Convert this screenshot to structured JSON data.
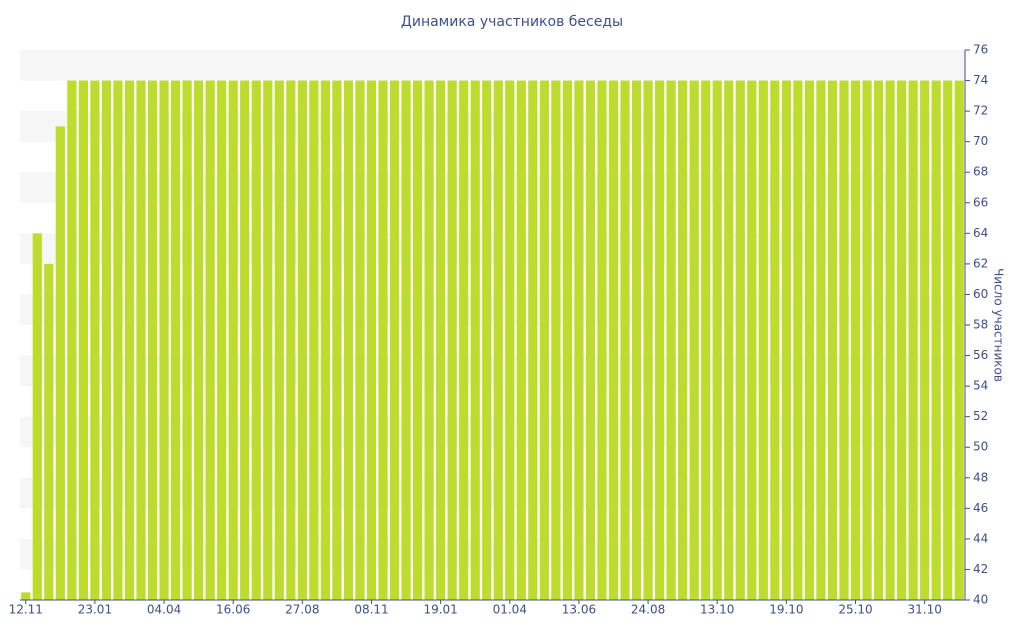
{
  "chart_data": {
    "type": "bar",
    "title": "Динамика участников беседы",
    "y_axis_label": "Число участников",
    "y_axis_side": "right",
    "grid": "bands",
    "color": "#bedc2e",
    "categories": [
      "12.11",
      null,
      null,
      null,
      null,
      null,
      "23.01",
      null,
      null,
      null,
      null,
      null,
      "04.04",
      null,
      null,
      null,
      null,
      null,
      "16.06",
      null,
      null,
      null,
      null,
      null,
      "27.08",
      null,
      null,
      null,
      null,
      null,
      "08.11",
      null,
      null,
      null,
      null,
      null,
      "19.01",
      null,
      null,
      null,
      null,
      null,
      "01.04",
      null,
      null,
      null,
      null,
      null,
      "13.06",
      null,
      null,
      null,
      null,
      null,
      "24.08",
      null,
      null,
      null,
      null,
      null,
      "13.10",
      null,
      null,
      null,
      null,
      null,
      "19.10",
      null,
      null,
      null,
      null,
      null,
      "25.10",
      null,
      null,
      null,
      null,
      null,
      "31.10",
      null,
      null,
      null
    ],
    "values": [
      40.5,
      64,
      62,
      71,
      74,
      74,
      74,
      74,
      74,
      74,
      74,
      74,
      74,
      74,
      74,
      74,
      74,
      74,
      74,
      74,
      74,
      74,
      74,
      74,
      74,
      74,
      74,
      74,
      74,
      74,
      74,
      74,
      74,
      74,
      74,
      74,
      74,
      74,
      74,
      74,
      74,
      74,
      74,
      74,
      74,
      74,
      74,
      74,
      74,
      74,
      74,
      74,
      74,
      74,
      74,
      74,
      74,
      74,
      74,
      74,
      74,
      74,
      74,
      74,
      74,
      74,
      74,
      74,
      74,
      74,
      74,
      74,
      74,
      74,
      74,
      74,
      74,
      74,
      74,
      74,
      74,
      74
    ],
    "ylim": [
      40,
      76
    ],
    "yticks": [
      40,
      42,
      44,
      46,
      48,
      50,
      52,
      54,
      56,
      58,
      60,
      62,
      64,
      66,
      68,
      70,
      72,
      74,
      76
    ]
  }
}
